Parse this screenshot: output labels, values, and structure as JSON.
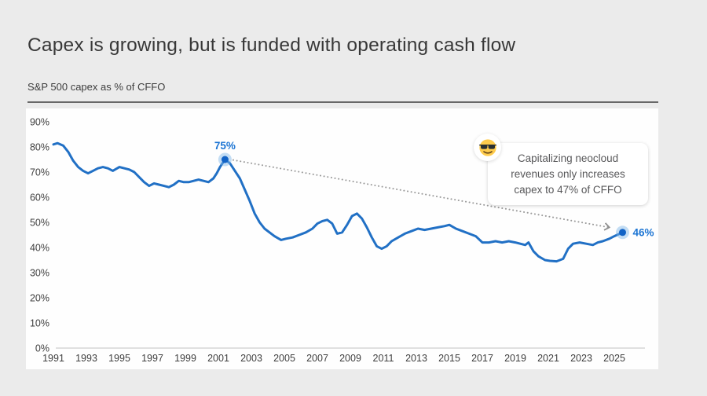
{
  "page": {
    "title": "Capex is growing, but is funded with operating cash flow",
    "subtitle": "S&P 500 capex as % of CFFO"
  },
  "callout": {
    "icon": "sunglasses-emoji",
    "lines": [
      "Capitalizing neocloud",
      "revenues only increases",
      "capex to 47% of CFFO"
    ]
  },
  "chart_data": {
    "type": "line",
    "title": "S&P 500 capex as % of CFFO",
    "xlabel": "",
    "ylabel": "",
    "xlim": [
      1991,
      2026
    ],
    "ylim": [
      0,
      90
    ],
    "grid": false,
    "x_ticks": [
      1991,
      1993,
      1995,
      1997,
      1999,
      2001,
      2003,
      2005,
      2007,
      2009,
      2011,
      2013,
      2015,
      2017,
      2019,
      2021,
      2023,
      2025
    ],
    "y_ticks": [
      "0%",
      "10%",
      "20%",
      "30%",
      "40%",
      "50%",
      "60%",
      "70%",
      "80%",
      "90%"
    ],
    "series_name": "S&P 500 capex as % of CFFO",
    "x": [
      1991.0,
      1991.25,
      1991.6,
      1991.9,
      1992.2,
      1992.5,
      1992.8,
      1993.1,
      1993.4,
      1993.7,
      1994.0,
      1994.3,
      1994.6,
      1995.0,
      1995.3,
      1995.6,
      1995.9,
      1996.2,
      1996.5,
      1996.8,
      1997.1,
      1997.4,
      1997.7,
      1998.0,
      1998.3,
      1998.6,
      1998.9,
      1999.2,
      1999.5,
      1999.8,
      2000.1,
      2000.4,
      2000.7,
      2000.9,
      2001.1,
      2001.4,
      2001.7,
      2002.0,
      2002.3,
      2002.6,
      2002.9,
      2003.2,
      2003.5,
      2003.8,
      2004.1,
      2004.4,
      2004.8,
      2005.1,
      2005.5,
      2005.9,
      2006.3,
      2006.7,
      2007.0,
      2007.3,
      2007.6,
      2007.9,
      2008.2,
      2008.5,
      2008.8,
      2009.1,
      2009.4,
      2009.7,
      2010.0,
      2010.3,
      2010.6,
      2010.9,
      2011.2,
      2011.5,
      2011.9,
      2012.3,
      2012.7,
      2013.1,
      2013.5,
      2013.9,
      2014.3,
      2014.7,
      2015.0,
      2015.4,
      2015.8,
      2016.2,
      2016.6,
      2017.0,
      2017.4,
      2017.8,
      2018.2,
      2018.6,
      2019.0,
      2019.3,
      2019.6,
      2019.8,
      2020.1,
      2020.4,
      2020.8,
      2021.1,
      2021.5,
      2021.9,
      2022.2,
      2022.5,
      2022.9,
      2023.3,
      2023.7,
      2024.0,
      2024.3,
      2024.7,
      2025.0,
      2025.5
    ],
    "values": [
      81,
      81.5,
      80.5,
      78,
      74.5,
      72,
      70.5,
      69.5,
      70.5,
      71.5,
      72,
      71.5,
      70.5,
      72,
      71.5,
      71,
      70,
      68,
      66,
      64.5,
      65.5,
      65,
      64.5,
      64,
      65,
      66.5,
      66,
      66,
      66.5,
      67,
      66.5,
      66,
      67.5,
      69.5,
      72,
      75,
      73.5,
      70.5,
      67.5,
      63,
      58.5,
      53.5,
      50,
      47.5,
      46,
      44.5,
      43,
      43.5,
      44,
      45,
      46,
      47.5,
      49.5,
      50.5,
      51,
      49.5,
      45.5,
      46,
      49,
      52.5,
      53.5,
      51.5,
      48,
      44,
      40.5,
      39.5,
      40.5,
      42.5,
      44,
      45.5,
      46.5,
      47.5,
      47,
      47.5,
      48,
      48.5,
      49,
      47.5,
      46.5,
      45.5,
      44.5,
      42,
      42,
      42.5,
      42,
      42.5,
      42,
      41.5,
      41,
      42,
      38.5,
      36.5,
      35,
      34.7,
      34.5,
      35.5,
      39.5,
      41.5,
      42,
      41.5,
      41,
      42,
      42.5,
      43.5,
      44.5,
      46
    ],
    "annotations": [
      {
        "x": 2001.4,
        "y": 75,
        "label": "75%",
        "label_side": "above"
      },
      {
        "x": 2025.5,
        "y": 46,
        "label": "46%",
        "label_side": "right"
      }
    ],
    "arrow": {
      "from": [
        2001.9,
        74.8
      ],
      "to": [
        2024.7,
        48.0
      ],
      "style": "dotted"
    },
    "colors": {
      "line": "#2170c5",
      "marker": "#1263c6",
      "marker_halo": "#7db6e8",
      "point_label": "#1b74d3",
      "axis_line": "#d5d5d5",
      "tick_text": "#3e3e3e",
      "arrow": "#9b9b9b"
    }
  }
}
